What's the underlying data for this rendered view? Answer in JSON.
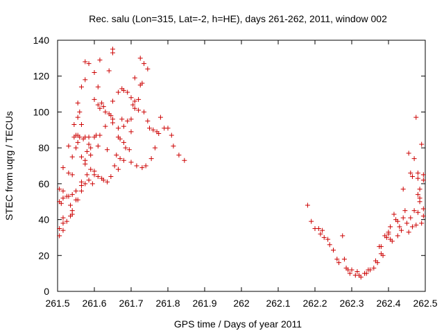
{
  "chart_data": {
    "type": "scatter",
    "title": "Rec. salu (Lon=315, Lat=-2, h=HE), days 261-262, 2011, window 002",
    "xlabel": "GPS time / Days of year 2011",
    "ylabel": "STEC from uqrg / TECUs",
    "xlim": [
      261.5,
      262.5
    ],
    "ylim": [
      0,
      140
    ],
    "x_ticks": [
      261.5,
      261.6,
      261.7,
      261.8,
      261.9,
      262.0,
      262.1,
      262.2,
      262.3,
      262.4,
      262.5
    ],
    "x_tick_labels": [
      "261.5",
      "261.6",
      "261.7",
      "261.8",
      "261.9",
      "262",
      "262.1",
      "262.2",
      "262.3",
      "262.4",
      "262.5"
    ],
    "y_ticks": [
      0,
      20,
      40,
      60,
      80,
      100,
      120,
      140
    ],
    "y_tick_labels": [
      "0",
      "20",
      "40",
      "60",
      "80",
      "100",
      "120",
      "140"
    ],
    "grid": false,
    "legend": "none",
    "marker": "plus",
    "color": "#cc0000",
    "points": [
      [
        261.505,
        57
      ],
      [
        261.505,
        50
      ],
      [
        261.505,
        35
      ],
      [
        261.505,
        31
      ],
      [
        261.51,
        49
      ],
      [
        261.515,
        69
      ],
      [
        261.515,
        56
      ],
      [
        261.515,
        52
      ],
      [
        261.515,
        41
      ],
      [
        261.515,
        38
      ],
      [
        261.515,
        34
      ],
      [
        261.525,
        53
      ],
      [
        261.525,
        39
      ],
      [
        261.53,
        81
      ],
      [
        261.53,
        66
      ],
      [
        261.53,
        53
      ],
      [
        261.535,
        48
      ],
      [
        261.535,
        42
      ],
      [
        261.54,
        75
      ],
      [
        261.54,
        65
      ],
      [
        261.54,
        54
      ],
      [
        261.54,
        45
      ],
      [
        261.54,
        43
      ],
      [
        261.545,
        93
      ],
      [
        261.545,
        86
      ],
      [
        261.55,
        87
      ],
      [
        261.55,
        80
      ],
      [
        261.55,
        56
      ],
      [
        261.55,
        51
      ],
      [
        261.555,
        105
      ],
      [
        261.555,
        97
      ],
      [
        261.555,
        87
      ],
      [
        261.555,
        83
      ],
      [
        261.555,
        51
      ],
      [
        261.56,
        100
      ],
      [
        261.56,
        86
      ],
      [
        261.565,
        114
      ],
      [
        261.565,
        93
      ],
      [
        261.565,
        75
      ],
      [
        261.565,
        61
      ],
      [
        261.565,
        59
      ],
      [
        261.565,
        56
      ],
      [
        261.57,
        85
      ],
      [
        261.575,
        128
      ],
      [
        261.575,
        118
      ],
      [
        261.575,
        86
      ],
      [
        261.575,
        73
      ],
      [
        261.575,
        71
      ],
      [
        261.575,
        60
      ],
      [
        261.58,
        78
      ],
      [
        261.58,
        65
      ],
      [
        261.585,
        127
      ],
      [
        261.585,
        86
      ],
      [
        261.585,
        82
      ],
      [
        261.585,
        62
      ],
      [
        261.59,
        80
      ],
      [
        261.59,
        76
      ],
      [
        261.59,
        68
      ],
      [
        261.595,
        60
      ],
      [
        261.6,
        122
      ],
      [
        261.6,
        107
      ],
      [
        261.6,
        86
      ],
      [
        261.6,
        67
      ],
      [
        261.6,
        65
      ],
      [
        261.605,
        87
      ],
      [
        261.61,
        114
      ],
      [
        261.61,
        104
      ],
      [
        261.61,
        81
      ],
      [
        261.61,
        64
      ],
      [
        261.615,
        129
      ],
      [
        261.615,
        102
      ],
      [
        261.615,
        87
      ],
      [
        261.62,
        105
      ],
      [
        261.62,
        63
      ],
      [
        261.625,
        103
      ],
      [
        261.625,
        62
      ],
      [
        261.63,
        100
      ],
      [
        261.63,
        92
      ],
      [
        261.635,
        79
      ],
      [
        261.635,
        61
      ],
      [
        261.64,
        123
      ],
      [
        261.64,
        99
      ],
      [
        261.645,
        98
      ],
      [
        261.645,
        64
      ],
      [
        261.65,
        135
      ],
      [
        261.65,
        133
      ],
      [
        261.65,
        106
      ],
      [
        261.65,
        96
      ],
      [
        261.65,
        94
      ],
      [
        261.655,
        70
      ],
      [
        261.66,
        76
      ],
      [
        261.665,
        111
      ],
      [
        261.665,
        91
      ],
      [
        261.665,
        86
      ],
      [
        261.665,
        68
      ],
      [
        261.67,
        85
      ],
      [
        261.67,
        74
      ],
      [
        261.675,
        113
      ],
      [
        261.675,
        96
      ],
      [
        261.68,
        112
      ],
      [
        261.68,
        92
      ],
      [
        261.68,
        83
      ],
      [
        261.68,
        73
      ],
      [
        261.685,
        80
      ],
      [
        261.69,
        111
      ],
      [
        261.69,
        95
      ],
      [
        261.695,
        79
      ],
      [
        261.7,
        108
      ],
      [
        261.7,
        96
      ],
      [
        261.7,
        89
      ],
      [
        261.7,
        72
      ],
      [
        261.705,
        104
      ],
      [
        261.71,
        119
      ],
      [
        261.71,
        106
      ],
      [
        261.71,
        102
      ],
      [
        261.715,
        70
      ],
      [
        261.72,
        107
      ],
      [
        261.72,
        101
      ],
      [
        261.725,
        130
      ],
      [
        261.725,
        115
      ],
      [
        261.73,
        116
      ],
      [
        261.73,
        69
      ],
      [
        261.735,
        127
      ],
      [
        261.735,
        100
      ],
      [
        261.74,
        70
      ],
      [
        261.745,
        124
      ],
      [
        261.745,
        95
      ],
      [
        261.75,
        91
      ],
      [
        261.755,
        74
      ],
      [
        261.76,
        90
      ],
      [
        261.765,
        80
      ],
      [
        261.77,
        89
      ],
      [
        261.775,
        88
      ],
      [
        261.78,
        97
      ],
      [
        261.79,
        91
      ],
      [
        261.8,
        91
      ],
      [
        261.81,
        87
      ],
      [
        261.815,
        81
      ],
      [
        261.83,
        76
      ],
      [
        261.845,
        73
      ],
      [
        262.18,
        48
      ],
      [
        262.19,
        39
      ],
      [
        262.2,
        35
      ],
      [
        262.21,
        35
      ],
      [
        262.215,
        32
      ],
      [
        262.22,
        34
      ],
      [
        262.225,
        30
      ],
      [
        262.235,
        29
      ],
      [
        262.24,
        26
      ],
      [
        262.25,
        23
      ],
      [
        262.26,
        18
      ],
      [
        262.265,
        16
      ],
      [
        262.275,
        31
      ],
      [
        262.28,
        18
      ],
      [
        262.285,
        13
      ],
      [
        262.29,
        12
      ],
      [
        262.295,
        10
      ],
      [
        262.3,
        12
      ],
      [
        262.31,
        9
      ],
      [
        262.315,
        11
      ],
      [
        262.32,
        9
      ],
      [
        262.325,
        8
      ],
      [
        262.335,
        10
      ],
      [
        262.34,
        10
      ],
      [
        262.345,
        12
      ],
      [
        262.35,
        12
      ],
      [
        262.36,
        13
      ],
      [
        262.365,
        17
      ],
      [
        262.37,
        16
      ],
      [
        262.375,
        25
      ],
      [
        262.38,
        25
      ],
      [
        262.38,
        21
      ],
      [
        262.385,
        20
      ],
      [
        262.39,
        31
      ],
      [
        262.395,
        30
      ],
      [
        262.4,
        33
      ],
      [
        262.4,
        32
      ],
      [
        262.405,
        36
      ],
      [
        262.405,
        29
      ],
      [
        262.41,
        28
      ],
      [
        262.415,
        43
      ],
      [
        262.42,
        40
      ],
      [
        262.425,
        39
      ],
      [
        262.425,
        31
      ],
      [
        262.43,
        36
      ],
      [
        262.435,
        34
      ],
      [
        262.44,
        57
      ],
      [
        262.44,
        41
      ],
      [
        262.445,
        45
      ],
      [
        262.45,
        38
      ],
      [
        262.455,
        33
      ],
      [
        262.46,
        41
      ],
      [
        262.465,
        36
      ],
      [
        262.47,
        45
      ],
      [
        262.475,
        37
      ],
      [
        262.48,
        63
      ],
      [
        262.48,
        54
      ],
      [
        262.48,
        44
      ],
      [
        262.485,
        57
      ],
      [
        262.485,
        50
      ],
      [
        262.49,
        38
      ],
      [
        262.495,
        62
      ],
      [
        262.495,
        46
      ],
      [
        262.495,
        42
      ],
      [
        262.455,
        77
      ],
      [
        262.46,
        66
      ],
      [
        262.465,
        64
      ],
      [
        262.47,
        74
      ],
      [
        262.475,
        97
      ],
      [
        262.48,
        66
      ],
      [
        262.485,
        52
      ],
      [
        262.49,
        82
      ],
      [
        262.495,
        65
      ]
    ]
  }
}
